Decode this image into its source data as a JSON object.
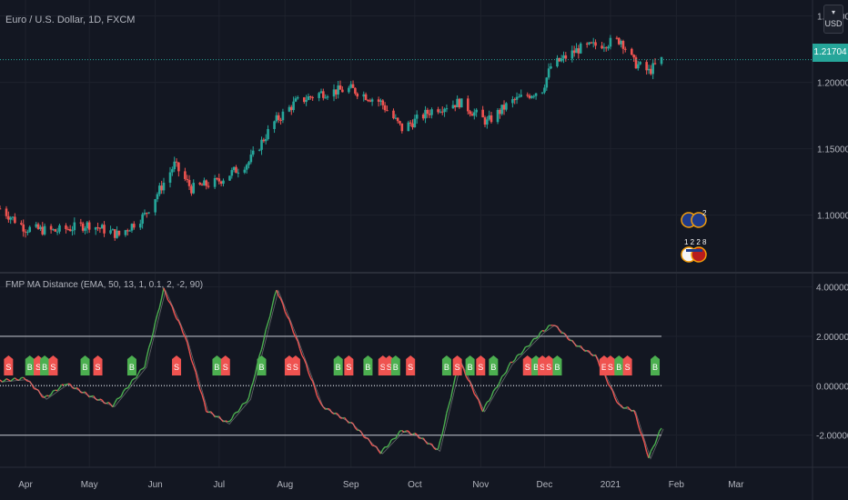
{
  "header": {
    "symbol_title": "Euro / U.S. Dollar, 1D, FXCM",
    "currency": "USD",
    "current_price": "1.21704",
    "currency_icon": "currency-selector-icon"
  },
  "indicator": {
    "title": "FMP MA Distance (EMA, 50, 13, 1, 0.1, 2, -2, 90)"
  },
  "colors": {
    "background": "#131722",
    "bull": "#26a69a",
    "bear": "#ef5350",
    "osc_up": "#4caf50",
    "osc_down": "#ef5350",
    "signal_line": "#9e9e9e",
    "buy_label": "#4caf50",
    "sell_label": "#ef5350"
  },
  "events": {
    "icon": "flag-event-icon",
    "lines": [
      "2",
      "1 2 2",
      "8"
    ]
  },
  "chart_data": [
    {
      "type": "candlestick",
      "title": "Euro / U.S. Dollar, 1D, FXCM",
      "x_tick_labels": [
        "Apr",
        "May",
        "Jun",
        "Jul",
        "Aug",
        "Sep",
        "Oct",
        "Nov",
        "Dec",
        "2021",
        "Feb",
        "Mar"
      ],
      "y_tick_labels": [
        "1.25000",
        "1.20000",
        "1.15000",
        "1.10000"
      ],
      "y_ticks": [
        1.25,
        1.2,
        1.15,
        1.1
      ],
      "ylim": [
        1.058,
        1.262
      ],
      "last_price": 1.21704,
      "trend_points": [
        [
          "2020-03-20",
          1.105
        ],
        [
          "2020-04-01",
          1.09
        ],
        [
          "2020-04-15",
          1.088
        ],
        [
          "2020-05-01",
          1.093
        ],
        [
          "2020-05-15",
          1.085
        ],
        [
          "2020-05-27",
          1.1
        ],
        [
          "2020-06-10",
          1.138
        ],
        [
          "2020-06-18",
          1.12
        ],
        [
          "2020-06-30",
          1.125
        ],
        [
          "2020-07-15",
          1.14
        ],
        [
          "2020-07-27",
          1.17
        ],
        [
          "2020-08-06",
          1.185
        ],
        [
          "2020-08-18",
          1.192
        ],
        [
          "2020-09-01",
          1.195
        ],
        [
          "2020-09-15",
          1.185
        ],
        [
          "2020-09-25",
          1.165
        ],
        [
          "2020-10-10",
          1.18
        ],
        [
          "2020-10-22",
          1.185
        ],
        [
          "2020-11-04",
          1.17
        ],
        [
          "2020-11-15",
          1.185
        ],
        [
          "2020-11-30",
          1.195
        ],
        [
          "2020-12-04",
          1.212
        ],
        [
          "2020-12-17",
          1.225
        ],
        [
          "2021-01-06",
          1.232
        ],
        [
          "2021-01-12",
          1.215
        ],
        [
          "2021-01-19",
          1.208
        ],
        [
          "2021-01-25",
          1.217
        ]
      ],
      "grid": true
    },
    {
      "type": "line",
      "title": "FMP MA Distance (EMA, 50, 13, 1, 0.1, 2, -2, 90)",
      "y_tick_labels": [
        "4.00000",
        "2.00000",
        "0.00000",
        "-2.00000"
      ],
      "y_ticks": [
        4,
        2,
        0,
        -2
      ],
      "ylim": [
        -3.3,
        4.5
      ],
      "thresholds": [
        2,
        0,
        -2
      ],
      "trend_points": [
        [
          "2020-03-20",
          0.2
        ],
        [
          "2020-04-01",
          0.3
        ],
        [
          "2020-04-10",
          -0.5
        ],
        [
          "2020-04-20",
          0.1
        ],
        [
          "2020-05-01",
          -0.4
        ],
        [
          "2020-05-12",
          -0.8
        ],
        [
          "2020-05-27",
          0.8
        ],
        [
          "2020-06-05",
          3.9
        ],
        [
          "2020-06-15",
          2.0
        ],
        [
          "2020-06-25",
          -1.0
        ],
        [
          "2020-07-05",
          -1.5
        ],
        [
          "2020-07-15",
          -0.5
        ],
        [
          "2020-07-28",
          3.9
        ],
        [
          "2020-08-05",
          2.2
        ],
        [
          "2020-08-18",
          -0.8
        ],
        [
          "2020-09-01",
          -1.5
        ],
        [
          "2020-09-15",
          -2.7
        ],
        [
          "2020-09-25",
          -1.8
        ],
        [
          "2020-10-02",
          -2.0
        ],
        [
          "2020-10-12",
          -2.6
        ],
        [
          "2020-10-22",
          1.0
        ],
        [
          "2020-11-02",
          -1.0
        ],
        [
          "2020-11-15",
          0.9
        ],
        [
          "2020-11-30",
          2.2
        ],
        [
          "2020-12-05",
          2.5
        ],
        [
          "2020-12-15",
          1.7
        ],
        [
          "2020-12-25",
          1.2
        ],
        [
          "2021-01-05",
          -0.8
        ],
        [
          "2021-01-12",
          -1.0
        ],
        [
          "2021-01-19",
          -2.9
        ],
        [
          "2021-01-25",
          -1.7
        ]
      ],
      "signals": [
        {
          "date": "2020-03-24",
          "label": "S"
        },
        {
          "date": "2020-04-03",
          "label": "B"
        },
        {
          "date": "2020-04-07",
          "label": "S"
        },
        {
          "date": "2020-04-10",
          "label": "B"
        },
        {
          "date": "2020-04-14",
          "label": "S"
        },
        {
          "date": "2020-04-29",
          "label": "B"
        },
        {
          "date": "2020-05-05",
          "label": "S"
        },
        {
          "date": "2020-05-21",
          "label": "B"
        },
        {
          "date": "2020-06-11",
          "label": "S"
        },
        {
          "date": "2020-06-30",
          "label": "B"
        },
        {
          "date": "2020-07-04",
          "label": "S"
        },
        {
          "date": "2020-07-21",
          "label": "B"
        },
        {
          "date": "2020-08-03",
          "label": "S"
        },
        {
          "date": "2020-08-06",
          "label": "S"
        },
        {
          "date": "2020-08-26",
          "label": "B"
        },
        {
          "date": "2020-08-31",
          "label": "S"
        },
        {
          "date": "2020-09-09",
          "label": "B"
        },
        {
          "date": "2020-09-16",
          "label": "S"
        },
        {
          "date": "2020-09-19",
          "label": "S"
        },
        {
          "date": "2020-09-22",
          "label": "B"
        },
        {
          "date": "2020-09-29",
          "label": "S"
        },
        {
          "date": "2020-10-16",
          "label": "B"
        },
        {
          "date": "2020-10-21",
          "label": "S"
        },
        {
          "date": "2020-10-27",
          "label": "B"
        },
        {
          "date": "2020-11-01",
          "label": "S"
        },
        {
          "date": "2020-11-07",
          "label": "B"
        },
        {
          "date": "2020-11-23",
          "label": "S"
        },
        {
          "date": "2020-11-27",
          "label": "B"
        },
        {
          "date": "2020-11-30",
          "label": "S"
        },
        {
          "date": "2020-12-03",
          "label": "S"
        },
        {
          "date": "2020-12-07",
          "label": "B"
        },
        {
          "date": "2020-12-29",
          "label": "E"
        },
        {
          "date": "2021-01-01",
          "label": "S"
        },
        {
          "date": "2021-01-05",
          "label": "B"
        },
        {
          "date": "2021-01-09",
          "label": "S"
        },
        {
          "date": "2021-01-22",
          "label": "B"
        }
      ],
      "grid": true
    }
  ]
}
